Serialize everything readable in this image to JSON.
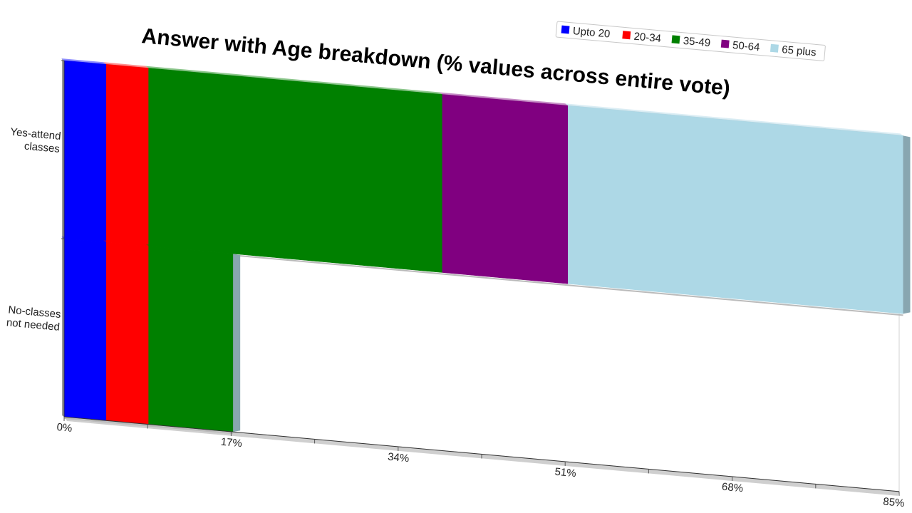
{
  "chart_data": {
    "type": "bar",
    "orientation": "horizontal",
    "stacked": true,
    "title": "Answer with Age breakdown (% values across entire vote)",
    "categories": [
      "Yes-attend classes",
      "No-classes not needed"
    ],
    "category_lines": [
      [
        "Yes-attend",
        "classes"
      ],
      [
        "No-classes",
        "not needed"
      ]
    ],
    "series": [
      {
        "name": "Upto 20",
        "color": "#0000ff",
        "values": [
          4.3,
          4.3
        ]
      },
      {
        "name": "20-34",
        "color": "#ff0000",
        "values": [
          4.3,
          4.3
        ]
      },
      {
        "name": "35-49",
        "color": "#008000",
        "values": [
          29.9,
          8.6
        ]
      },
      {
        "name": "50-64",
        "color": "#800080",
        "values": [
          12.8,
          0
        ]
      },
      {
        "name": "65 plus",
        "color": "#add8e6",
        "values": [
          34.1,
          0
        ]
      }
    ],
    "xlim": [
      0,
      85
    ],
    "xticks": [
      "0%",
      "17%",
      "34%",
      "51%",
      "68%",
      "85%"
    ],
    "tick_values": [
      0,
      17,
      34,
      51,
      68,
      85
    ],
    "legend_position": "top-right",
    "grid": false,
    "style": "3d-perspective"
  }
}
